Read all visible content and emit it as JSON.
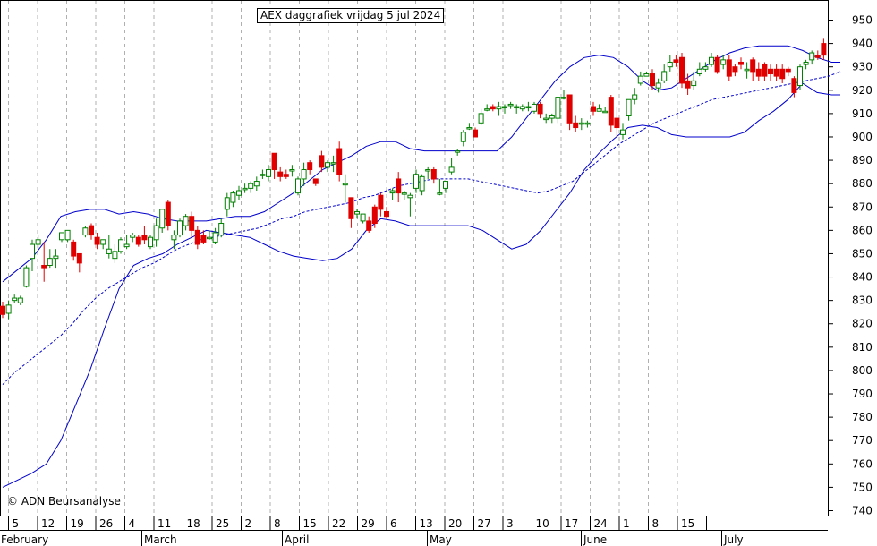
{
  "chart_data": {
    "type": "candlestick",
    "title": "AEX daggrafiek vrijdag 5 jul 2024",
    "copyright": "© ADN Beursanalyse",
    "ylim": [
      738,
      958
    ],
    "y_ticks": [
      950,
      940,
      930,
      920,
      910,
      900,
      890,
      880,
      870,
      860,
      850,
      840,
      830,
      820,
      810,
      800,
      790,
      780,
      770,
      760,
      750,
      740
    ],
    "x_tick_labels": [
      "5",
      "12",
      "19",
      "26",
      "4",
      "11",
      "18",
      "25",
      "2",
      "8",
      "15",
      "22",
      "29",
      "6",
      "13",
      "20",
      "27",
      "3",
      "10",
      "17",
      "24",
      "1",
      "8",
      "15"
    ],
    "month_labels": [
      "February",
      "March",
      "April",
      "May",
      "June",
      "July"
    ],
    "grid": "vertical dashed",
    "colors": {
      "up": "#008000",
      "down": "#e00000",
      "bands": "#0000cc",
      "grid": "#b0b0b0"
    },
    "candles": [
      [
        827.5,
        824,
        829.5,
        822.5
      ],
      [
        824.5,
        828,
        830,
        822
      ],
      [
        830,
        831,
        832.5,
        829
      ],
      [
        829,
        831,
        832,
        828
      ],
      [
        836,
        844,
        845,
        835.5
      ],
      [
        848,
        854,
        856,
        842.5
      ],
      [
        854,
        856,
        858,
        852
      ],
      [
        845,
        844,
        855,
        838
      ],
      [
        845,
        848,
        852,
        844
      ],
      [
        848,
        849,
        852,
        844
      ],
      [
        856,
        859,
        859,
        855
      ],
      [
        856,
        860,
        860,
        855
      ],
      [
        855,
        849,
        856,
        847
      ],
      [
        850,
        846,
        850,
        842
      ],
      [
        858,
        861,
        862,
        857
      ],
      [
        862,
        858,
        863,
        856
      ],
      [
        857,
        854,
        859,
        852
      ],
      [
        854,
        856,
        856,
        852
      ],
      [
        850,
        852,
        858,
        848
      ],
      [
        848,
        851,
        854,
        846
      ],
      [
        851,
        856,
        857,
        850
      ],
      [
        853,
        854,
        858,
        852
      ],
      [
        857,
        858,
        859,
        855
      ],
      [
        857,
        854,
        858,
        853
      ],
      [
        858,
        856,
        862,
        854
      ],
      [
        853,
        857,
        858,
        852
      ],
      [
        856,
        862,
        865,
        853
      ],
      [
        861,
        869,
        869,
        859
      ],
      [
        872,
        862,
        873,
        860
      ],
      [
        856,
        858,
        860,
        852
      ],
      [
        858,
        864,
        865,
        857
      ],
      [
        862,
        866,
        867,
        860
      ],
      [
        866,
        860,
        868,
        857
      ],
      [
        860,
        854,
        862,
        852
      ],
      [
        858,
        855,
        860,
        854
      ],
      [
        857,
        857,
        860,
        856
      ],
      [
        855,
        859,
        861,
        854
      ],
      [
        858,
        863,
        865,
        857
      ],
      [
        869,
        874,
        876,
        866
      ],
      [
        872,
        876,
        877,
        870
      ],
      [
        875,
        877,
        879,
        873
      ],
      [
        878,
        878,
        880,
        876
      ],
      [
        878,
        880,
        881,
        876
      ],
      [
        879,
        881,
        883,
        877
      ],
      [
        884,
        884,
        886,
        882
      ],
      [
        883,
        886,
        888,
        881
      ],
      [
        893,
        886,
        893,
        882
      ],
      [
        885,
        883,
        887,
        881
      ],
      [
        884,
        883,
        886,
        882
      ],
      [
        886,
        886,
        888,
        883
      ],
      [
        876,
        882,
        883,
        875
      ],
      [
        882,
        886,
        889,
        879
      ],
      [
        889,
        886,
        890,
        884
      ],
      [
        882,
        880,
        882,
        879
      ],
      [
        892,
        887,
        894,
        885
      ],
      [
        887,
        889,
        890,
        885
      ],
      [
        889,
        889,
        892,
        885
      ],
      [
        895,
        884,
        898,
        881
      ],
      [
        880,
        880,
        884,
        872
      ],
      [
        874,
        865,
        874,
        861
      ],
      [
        867,
        868,
        869,
        865
      ],
      [
        864,
        867,
        867,
        863
      ],
      [
        864,
        860,
        866,
        859
      ],
      [
        870,
        863,
        871,
        861
      ],
      [
        875,
        869,
        876,
        866
      ],
      [
        868,
        866,
        870,
        865
      ],
      [
        876,
        877,
        878,
        873
      ],
      [
        882,
        876,
        885,
        872
      ],
      [
        876,
        876,
        877,
        873
      ],
      [
        874,
        875,
        876,
        866
      ],
      [
        878,
        884,
        886,
        876
      ],
      [
        877,
        883,
        884,
        875
      ],
      [
        886,
        886,
        887,
        882
      ],
      [
        886,
        882,
        887,
        880
      ],
      [
        876,
        876,
        882,
        875
      ],
      [
        878,
        881,
        881,
        876
      ],
      [
        885,
        887,
        891,
        884
      ],
      [
        894,
        894,
        895,
        892
      ],
      [
        898,
        902,
        903,
        896
      ],
      [
        904,
        904,
        906,
        903
      ],
      [
        903,
        900,
        904,
        900
      ],
      [
        906,
        910,
        912,
        905
      ],
      [
        912,
        912,
        914,
        911
      ],
      [
        913,
        912,
        914,
        911
      ],
      [
        912,
        913,
        915,
        909
      ],
      [
        913,
        913,
        914,
        910
      ],
      [
        914,
        914,
        915,
        912
      ],
      [
        913,
        913,
        914,
        910
      ],
      [
        912,
        913,
        914,
        911
      ],
      [
        913,
        913,
        915,
        911
      ],
      [
        911,
        914,
        915,
        910
      ],
      [
        914,
        910,
        915,
        908
      ],
      [
        908,
        908,
        910,
        906
      ],
      [
        908,
        909,
        910,
        906
      ],
      [
        908,
        917,
        917,
        906
      ],
      [
        917,
        917,
        920,
        916
      ],
      [
        918,
        906,
        918,
        903
      ],
      [
        906,
        904,
        909,
        902
      ],
      [
        906,
        906,
        908,
        903
      ],
      [
        906,
        906,
        907,
        904
      ],
      [
        913,
        911,
        915,
        909
      ],
      [
        911,
        912,
        914,
        911
      ],
      [
        911,
        911,
        913,
        911
      ],
      [
        917,
        905,
        918,
        902
      ],
      [
        908,
        904,
        913,
        900
      ],
      [
        901,
        903,
        906,
        899
      ],
      [
        909,
        916,
        916,
        907
      ],
      [
        916,
        918,
        921,
        914
      ],
      [
        923,
        926,
        928,
        922
      ],
      [
        926,
        927,
        928,
        926
      ],
      [
        927,
        922,
        929,
        920
      ],
      [
        921,
        923,
        925,
        919
      ],
      [
        924,
        928,
        931,
        923
      ],
      [
        930,
        932,
        935,
        928
      ],
      [
        933,
        932,
        935,
        930
      ],
      [
        934,
        923,
        936,
        921
      ],
      [
        924,
        921,
        927,
        918
      ],
      [
        922,
        924,
        928,
        920
      ],
      [
        927,
        929,
        932,
        926
      ],
      [
        929,
        930,
        932,
        928
      ],
      [
        931,
        934,
        936,
        930
      ],
      [
        934,
        928,
        935,
        927
      ],
      [
        931,
        933,
        935,
        929
      ],
      [
        933,
        926,
        935,
        924
      ],
      [
        930,
        928,
        931,
        926
      ],
      [
        932,
        931,
        934,
        929
      ],
      [
        929,
        929,
        932,
        925
      ],
      [
        933,
        928,
        934,
        924
      ],
      [
        929,
        926,
        932,
        924
      ],
      [
        931,
        926,
        932,
        924
      ],
      [
        929,
        927,
        931,
        924
      ],
      [
        929,
        926,
        931,
        924
      ],
      [
        929,
        925,
        931,
        923
      ],
      [
        929,
        928,
        930,
        926
      ],
      [
        925,
        919,
        926,
        917
      ],
      [
        922,
        930,
        931,
        920
      ],
      [
        931,
        932,
        933,
        929
      ],
      [
        933,
        936,
        937,
        931
      ],
      [
        935,
        934,
        937,
        933
      ],
      [
        940,
        935,
        942,
        933
      ]
    ],
    "sma": [
      [
        0,
        794
      ],
      [
        4,
        799
      ],
      [
        8,
        803
      ],
      [
        12,
        807
      ],
      [
        16,
        811
      ],
      [
        20,
        815
      ],
      [
        24,
        820
      ],
      [
        28,
        826
      ],
      [
        32,
        831
      ],
      [
        36,
        835
      ],
      [
        40,
        838
      ],
      [
        44,
        841
      ],
      [
        48,
        844
      ],
      [
        52,
        846
      ],
      [
        56,
        849
      ],
      [
        60,
        852
      ],
      [
        64,
        854
      ],
      [
        68,
        856
      ],
      [
        72,
        857
      ],
      [
        76,
        858
      ],
      [
        80,
        859
      ],
      [
        84,
        860
      ],
      [
        88,
        861
      ],
      [
        92,
        863
      ],
      [
        96,
        865
      ],
      [
        100,
        866
      ],
      [
        104,
        868
      ],
      [
        108,
        869
      ],
      [
        112,
        870
      ],
      [
        116,
        871
      ],
      [
        120,
        872
      ],
      [
        124,
        874
      ],
      [
        128,
        875
      ],
      [
        132,
        877
      ],
      [
        136,
        879
      ],
      [
        140,
        880
      ],
      [
        144,
        881
      ],
      [
        148,
        882
      ],
      [
        152,
        882
      ],
      [
        156,
        882
      ],
      [
        160,
        882
      ],
      [
        164,
        881
      ],
      [
        168,
        880
      ],
      [
        172,
        879
      ],
      [
        176,
        878
      ],
      [
        180,
        877
      ],
      [
        184,
        876
      ],
      [
        188,
        877
      ],
      [
        192,
        879
      ],
      [
        196,
        881
      ],
      [
        200,
        885
      ],
      [
        204,
        889
      ],
      [
        208,
        893
      ],
      [
        212,
        897
      ],
      [
        216,
        900
      ],
      [
        220,
        903
      ],
      [
        224,
        906
      ],
      [
        228,
        908
      ],
      [
        232,
        910
      ],
      [
        236,
        912
      ],
      [
        240,
        914
      ],
      [
        244,
        916
      ],
      [
        248,
        917
      ],
      [
        252,
        918
      ],
      [
        256,
        919
      ],
      [
        260,
        920
      ],
      [
        264,
        921
      ],
      [
        268,
        922
      ],
      [
        272,
        923
      ],
      [
        276,
        924
      ],
      [
        280,
        925
      ],
      [
        284,
        926
      ],
      [
        288,
        928
      ]
    ],
    "upper_band": [
      [
        0,
        838
      ],
      [
        5,
        843
      ],
      [
        10,
        848
      ],
      [
        15,
        856
      ],
      [
        20,
        866
      ],
      [
        25,
        868
      ],
      [
        30,
        869
      ],
      [
        35,
        869
      ],
      [
        40,
        867
      ],
      [
        45,
        868
      ],
      [
        50,
        867
      ],
      [
        55,
        865
      ],
      [
        60,
        864
      ],
      [
        65,
        864
      ],
      [
        70,
        864
      ],
      [
        75,
        865
      ],
      [
        80,
        866
      ],
      [
        85,
        866
      ],
      [
        90,
        868
      ],
      [
        95,
        872
      ],
      [
        100,
        876
      ],
      [
        105,
        881
      ],
      [
        110,
        886
      ],
      [
        115,
        889
      ],
      [
        120,
        892
      ],
      [
        125,
        896
      ],
      [
        130,
        898
      ],
      [
        135,
        898
      ],
      [
        140,
        895
      ],
      [
        145,
        894
      ],
      [
        150,
        894
      ],
      [
        155,
        894
      ],
      [
        160,
        894
      ],
      [
        165,
        894
      ],
      [
        170,
        894
      ],
      [
        175,
        900
      ],
      [
        180,
        908
      ],
      [
        185,
        916
      ],
      [
        190,
        924
      ],
      [
        195,
        930
      ],
      [
        200,
        934
      ],
      [
        205,
        935
      ],
      [
        210,
        934
      ],
      [
        215,
        930
      ],
      [
        220,
        924
      ],
      [
        225,
        920
      ],
      [
        230,
        921
      ],
      [
        235,
        925
      ],
      [
        240,
        929
      ],
      [
        245,
        933
      ],
      [
        250,
        936
      ],
      [
        255,
        938
      ],
      [
        260,
        939
      ],
      [
        265,
        939
      ],
      [
        270,
        939
      ],
      [
        275,
        937
      ],
      [
        280,
        934
      ],
      [
        285,
        932
      ],
      [
        288,
        932
      ]
    ],
    "lower_band": [
      [
        0,
        750
      ],
      [
        5,
        753
      ],
      [
        10,
        756
      ],
      [
        15,
        760
      ],
      [
        20,
        770
      ],
      [
        25,
        785
      ],
      [
        30,
        800
      ],
      [
        35,
        818
      ],
      [
        40,
        835
      ],
      [
        45,
        845
      ],
      [
        50,
        848
      ],
      [
        55,
        850
      ],
      [
        60,
        854
      ],
      [
        65,
        857
      ],
      [
        70,
        860
      ],
      [
        75,
        859
      ],
      [
        80,
        858
      ],
      [
        85,
        857
      ],
      [
        90,
        854
      ],
      [
        95,
        851
      ],
      [
        100,
        849
      ],
      [
        105,
        848
      ],
      [
        110,
        847
      ],
      [
        115,
        848
      ],
      [
        120,
        852
      ],
      [
        125,
        860
      ],
      [
        130,
        865
      ],
      [
        135,
        864
      ],
      [
        140,
        862
      ],
      [
        145,
        862
      ],
      [
        150,
        862
      ],
      [
        155,
        862
      ],
      [
        160,
        862
      ],
      [
        165,
        860
      ],
      [
        170,
        856
      ],
      [
        175,
        852
      ],
      [
        180,
        854
      ],
      [
        185,
        860
      ],
      [
        190,
        868
      ],
      [
        195,
        876
      ],
      [
        200,
        886
      ],
      [
        205,
        893
      ],
      [
        210,
        899
      ],
      [
        215,
        904
      ],
      [
        220,
        905
      ],
      [
        225,
        904
      ],
      [
        230,
        901
      ],
      [
        235,
        900
      ],
      [
        240,
        900
      ],
      [
        245,
        900
      ],
      [
        250,
        900
      ],
      [
        255,
        902
      ],
      [
        260,
        907
      ],
      [
        265,
        911
      ],
      [
        270,
        916
      ],
      [
        275,
        923
      ],
      [
        280,
        919
      ],
      [
        285,
        918
      ],
      [
        288,
        918
      ]
    ]
  }
}
